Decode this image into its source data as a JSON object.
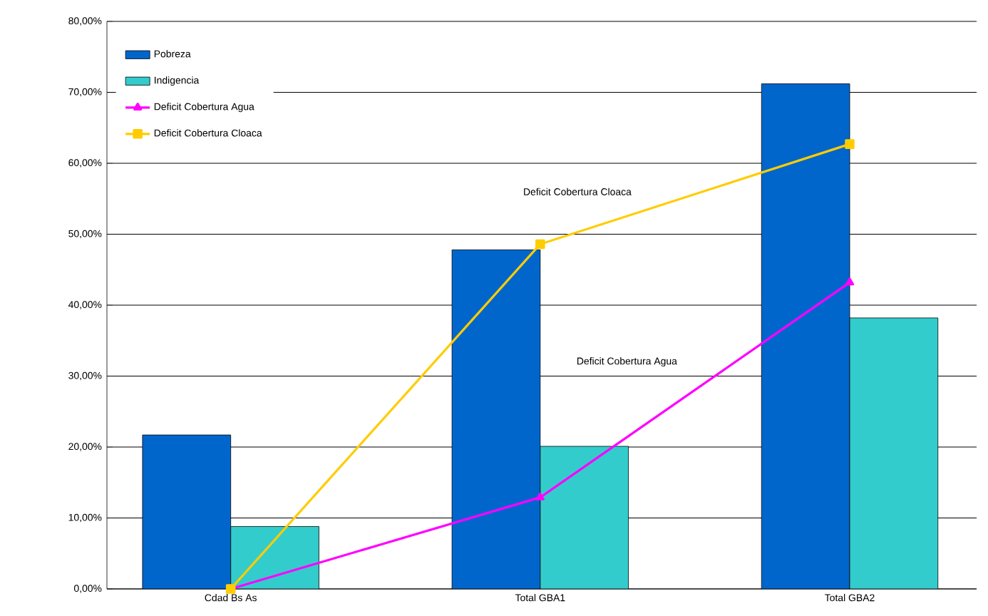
{
  "chart_data": {
    "type": "bar",
    "categories": [
      "Cdad Bs As",
      "Total GBA1",
      "Total GBA2"
    ],
    "series": [
      {
        "name": "Pobreza",
        "color": "#0066cc",
        "values": [
          21.7,
          47.8,
          71.2
        ]
      },
      {
        "name": "Indigencia",
        "color": "#33cccc",
        "values": [
          8.8,
          20.1,
          38.2
        ]
      },
      {
        "name": "Deficit Cobertura Agua",
        "type": "line",
        "marker": "triangle",
        "color": "#ff00ff",
        "values": [
          0,
          12.9,
          43.2
        ]
      },
      {
        "name": "Deficit Cobertura Cloaca",
        "type": "line",
        "marker": "square",
        "color": "#ffcc00",
        "values": [
          0,
          48.6,
          62.7
        ]
      }
    ],
    "annotations": [
      "Deficit Cobertura Cloaca",
      "Deficit Cobertura Agua"
    ],
    "ylim": [
      0,
      80
    ],
    "yticks": [
      {
        "value": 0,
        "label": "0,00%"
      },
      {
        "value": 10,
        "label": "10,00%"
      },
      {
        "value": 20,
        "label": "20,00%"
      },
      {
        "value": 30,
        "label": "30,00%"
      },
      {
        "value": 40,
        "label": "40,00%"
      },
      {
        "value": 50,
        "label": "50,00%"
      },
      {
        "value": 60,
        "label": "60,00%"
      },
      {
        "value": 70,
        "label": "70,00%"
      },
      {
        "value": 80,
        "label": "80,00%"
      }
    ],
    "grid": "y",
    "legend": "top left"
  }
}
